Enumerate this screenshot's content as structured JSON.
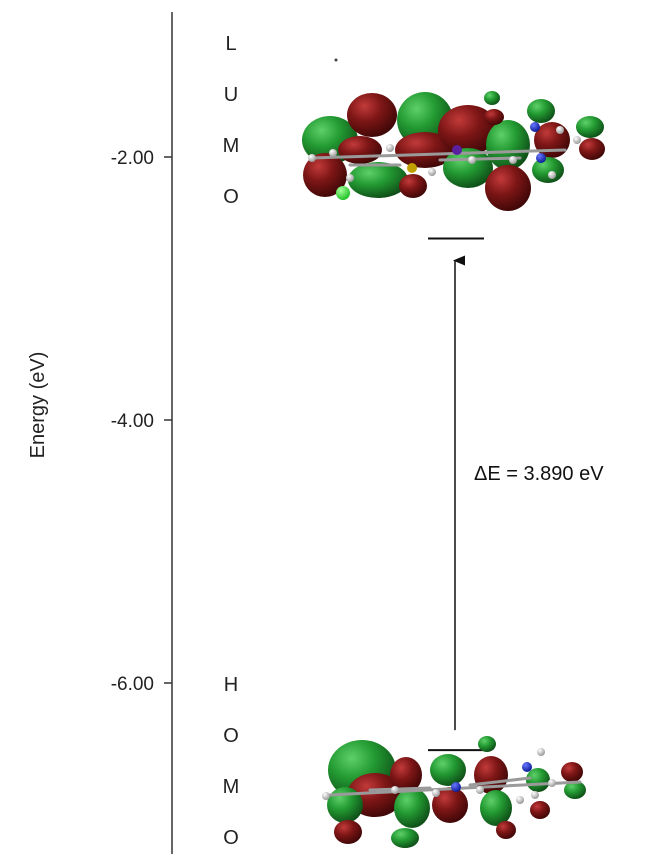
{
  "axis": {
    "title": "Energy (eV)",
    "ticks": [
      {
        "value": -2.0,
        "label": "-2.00"
      },
      {
        "value": -4.0,
        "label": "-4.00"
      },
      {
        "value": -6.0,
        "label": "-6.00"
      }
    ]
  },
  "levels": {
    "lumo": {
      "letters": [
        "L",
        "U",
        "M",
        "O"
      ],
      "energy": -2.62
    },
    "homo": {
      "letters": [
        "H",
        "O",
        "M",
        "O"
      ],
      "energy": -6.51
    }
  },
  "gap": {
    "label": "ΔE = 3.890 eV"
  },
  "colors": {
    "lobe_positive": "#1f7a2a",
    "lobe_negative": "#7a1414",
    "axis": "#333333",
    "arrow": "#111111",
    "nitrogen": "#1c2fd6",
    "chlorine": "#33dd33",
    "hydrogen": "#e6e6e6"
  }
}
